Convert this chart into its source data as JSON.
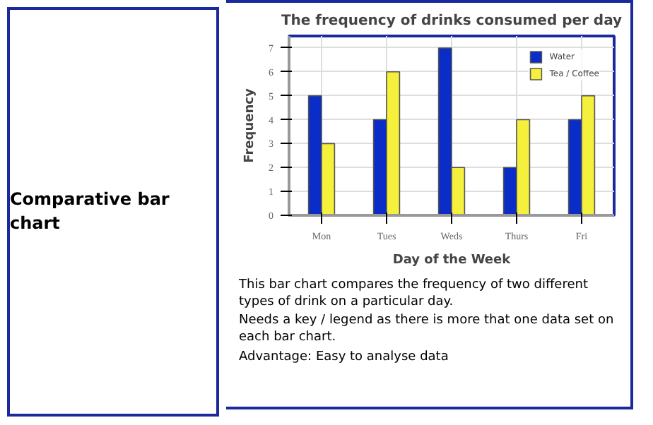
{
  "chart_data": {
    "type": "bar",
    "title": "The frequency of drinks consumed per day",
    "xlabel": "Day of the Week",
    "ylabel": "Frequency",
    "categories": [
      "Mon",
      "Tues",
      "Weds",
      "Thurs",
      "Fri"
    ],
    "series": [
      {
        "name": "Water",
        "color": "#0a2dc8",
        "values": [
          5,
          4,
          7,
          2,
          4
        ]
      },
      {
        "name": "Tea / Coffee",
        "color": "#f5f03c",
        "values": [
          3,
          6,
          2,
          4,
          5
        ]
      }
    ],
    "ylim": [
      0,
      7.5
    ],
    "yticks": [
      0,
      1,
      2,
      3,
      4,
      5,
      6,
      7
    ],
    "grid": true,
    "legend": "top right",
    "annotations": [
      "Comparative bar chart",
      "This bar chart compares the frequency of two different types of drink on a particular day.",
      "Needs a key / legend as there is more that one data set on each bar chart.",
      "Advantage: Easy to analyse data"
    ]
  }
}
